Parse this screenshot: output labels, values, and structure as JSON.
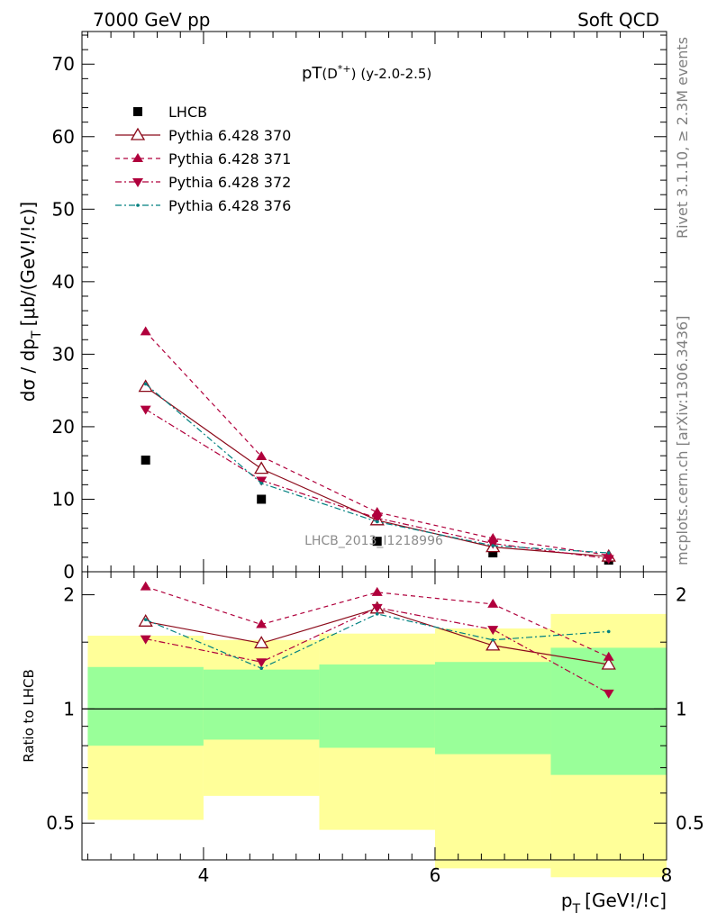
{
  "header": {
    "left": "7000 GeV pp",
    "right": "Soft QCD"
  },
  "side_labels": {
    "rivet": "Rivet 3.1.10, ≥ 2.3M events",
    "mcplots": "mcplots.cern.ch [arXiv:1306.3436]"
  },
  "watermark": "LHCB_2013_I1218996",
  "chart_data": [
    {
      "type": "scatter",
      "title": "pT(D*+) (y-2.0-2.5)",
      "title_main": "pT",
      "title_paren_open": "(",
      "title_D": "D",
      "title_sup": "*+",
      "title_paren_close": ")",
      "title_rest": "(y-2.0-2.5)",
      "ylabel": "dσ / dp_T [μb/(GeV!/!c)]",
      "ylabel_main": "dσ / dp",
      "ylabel_sub": "T",
      "ylabel_rest": "[μb/(GeV!/!c)]",
      "xlim": [
        2.95,
        8.0
      ],
      "ylim": [
        0,
        74.5
      ],
      "yticks": [
        0,
        10,
        20,
        30,
        40,
        50,
        60,
        70
      ],
      "ytick_labels": [
        "0",
        "10",
        "20",
        "30",
        "40",
        "50",
        "60",
        "70"
      ],
      "legend_position": "top-left",
      "x": [
        3.5,
        4.5,
        5.5,
        6.5,
        7.5
      ],
      "series": [
        {
          "name": "LHCB",
          "color": "#000000",
          "marker": "square",
          "line": "none",
          "values": [
            15.4,
            10.0,
            4.2,
            2.6,
            1.6
          ]
        },
        {
          "name": "Pythia 6.428 370",
          "color": "#8b0a1a",
          "marker": "triangle-up-open",
          "line": "solid",
          "values": [
            25.5,
            14.2,
            7.1,
            3.4,
            2.1
          ]
        },
        {
          "name": "Pythia 6.428 371",
          "color": "#b0003c",
          "marker": "triangle-up",
          "line": "dashed",
          "values": [
            33.1,
            15.9,
            8.2,
            4.6,
            2.3
          ]
        },
        {
          "name": "Pythia 6.428 372",
          "color": "#b0003c",
          "marker": "triangle-down",
          "line": "dashdot",
          "values": [
            22.4,
            12.6,
            7.4,
            3.9,
            1.8
          ]
        },
        {
          "name": "Pythia 6.428 376",
          "color": "#008080",
          "marker": "dot",
          "line": "dashdot",
          "values": [
            25.9,
            12.2,
            6.9,
            3.6,
            2.6
          ]
        }
      ]
    },
    {
      "type": "line",
      "ylabel": "Ratio to LHCB",
      "xlabel": "p_T [GeV!/!c]",
      "xlabel_main": "p",
      "xlabel_sub": "T",
      "xlabel_rest": "[GeV!/!c]",
      "xlim": [
        2.95,
        8.0
      ],
      "ylim": [
        0.4,
        2.3
      ],
      "yscale": "log",
      "xticks": [
        4,
        6,
        8
      ],
      "xtick_labels": [
        "4",
        "6",
        "8"
      ],
      "yticks": [
        0.5,
        1,
        2
      ],
      "ytick_labels": [
        "0.5",
        "1",
        "2"
      ],
      "bins": [
        [
          3.0,
          4.0
        ],
        [
          4.0,
          5.0
        ],
        [
          5.0,
          6.0
        ],
        [
          6.0,
          7.0
        ],
        [
          7.0,
          8.0
        ]
      ],
      "band_1sigma": [
        [
          0.8,
          1.29
        ],
        [
          0.83,
          1.27
        ],
        [
          0.79,
          1.31
        ],
        [
          0.76,
          1.33
        ],
        [
          0.67,
          1.45
        ]
      ],
      "band_2sigma": [
        [
          0.51,
          1.56
        ],
        [
          0.59,
          1.52
        ],
        [
          0.48,
          1.58
        ],
        [
          0.38,
          1.63
        ],
        [
          0.36,
          1.78
        ]
      ],
      "x": [
        3.5,
        4.5,
        5.5,
        6.5,
        7.5
      ],
      "series": [
        {
          "name": "Pythia 6.428 370",
          "color": "#8b0a1a",
          "marker": "triangle-up-open",
          "line": "solid",
          "values": [
            1.7,
            1.49,
            1.84,
            1.47,
            1.31
          ]
        },
        {
          "name": "Pythia 6.428 371",
          "color": "#b0003c",
          "marker": "triangle-up",
          "line": "dashed",
          "values": [
            2.1,
            1.67,
            2.03,
            1.89,
            1.37
          ]
        },
        {
          "name": "Pythia 6.428 372",
          "color": "#b0003c",
          "marker": "triangle-down",
          "line": "dashdot",
          "values": [
            1.53,
            1.33,
            1.85,
            1.62,
            1.1
          ]
        },
        {
          "name": "Pythia 6.428 376",
          "color": "#008080",
          "marker": "dot",
          "line": "dashdot",
          "values": [
            1.72,
            1.28,
            1.78,
            1.52,
            1.6
          ]
        }
      ]
    }
  ]
}
